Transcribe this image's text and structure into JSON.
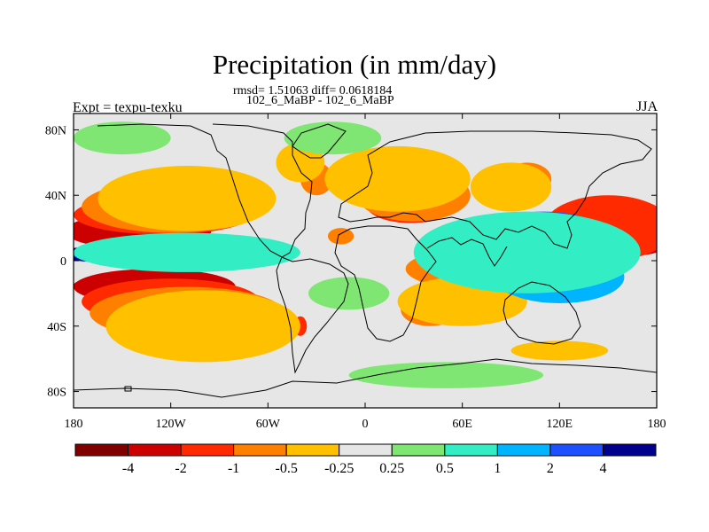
{
  "chart_data": {
    "type": "heatmap",
    "title": "Precipitation (in mm/day)",
    "subtitle_stats": "rmsd= 1.51063 diff= 0.0618184",
    "subtitle_runs": "102_6_MaBP - 102_6_MaBP",
    "left_label": "Expt = texpu-texku",
    "right_label": "JJA",
    "x_axis": {
      "range": [
        -180,
        180
      ],
      "ticks": [
        {
          "value": -180,
          "label": "180"
        },
        {
          "value": -120,
          "label": "120W"
        },
        {
          "value": -60,
          "label": "60W"
        },
        {
          "value": 0,
          "label": "0"
        },
        {
          "value": 60,
          "label": "60E"
        },
        {
          "value": 120,
          "label": "120E"
        },
        {
          "value": 180,
          "label": "180"
        }
      ]
    },
    "y_axis": {
      "range": [
        -90,
        90
      ],
      "ticks": [
        {
          "value": 80,
          "label": "80N"
        },
        {
          "value": 40,
          "label": "40N"
        },
        {
          "value": 0,
          "label": "0"
        },
        {
          "value": -40,
          "label": "40S"
        },
        {
          "value": -80,
          "label": "80S"
        }
      ]
    },
    "colorbar": {
      "colors": [
        "#800000",
        "#cc0000",
        "#ff2a00",
        "#ff7f00",
        "#ffc000",
        "#e6e6e6",
        "#80e673",
        "#33eec4",
        "#00b4ff",
        "#1e50ff",
        "#00008c"
      ],
      "labels": [
        "-4",
        "-2",
        "-1",
        "-0.5",
        "-0.25",
        "0.25",
        "0.5",
        "1",
        "2",
        "4"
      ]
    },
    "regions": [
      {
        "lon": -140,
        "lat": 15,
        "rx": 40,
        "ry": 6,
        "level": 0
      },
      {
        "lon": -145,
        "lat": -15,
        "rx": 35,
        "ry": 6,
        "level": 0
      },
      {
        "lon": -140,
        "lat": 18,
        "rx": 45,
        "ry": 11,
        "level": 1
      },
      {
        "lon": -130,
        "lat": -16,
        "rx": 50,
        "ry": 11,
        "level": 1
      },
      {
        "lon": 30,
        "lat": 33,
        "rx": 15,
        "ry": 7,
        "level": 1
      },
      {
        "lon": 55,
        "lat": -4,
        "rx": 15,
        "ry": 8,
        "level": 1
      },
      {
        "lon": -125,
        "lat": 28,
        "rx": 55,
        "ry": 12,
        "level": 2
      },
      {
        "lon": -120,
        "lat": -25,
        "rx": 55,
        "ry": 14,
        "level": 2
      },
      {
        "lon": -40,
        "lat": -40,
        "rx": 4,
        "ry": 6,
        "level": 2
      },
      {
        "lon": 28,
        "lat": 35,
        "rx": 28,
        "ry": 12,
        "level": 2
      },
      {
        "lon": 70,
        "lat": -3,
        "rx": 40,
        "ry": 10,
        "level": 2
      },
      {
        "lon": 172,
        "lat": 15,
        "rx": 22,
        "ry": 8,
        "level": 0
      },
      {
        "lon": 165,
        "lat": 18,
        "rx": 30,
        "ry": 15,
        "level": 1
      },
      {
        "lon": -120,
        "lat": 33,
        "rx": 55,
        "ry": 16,
        "level": 3
      },
      {
        "lon": -110,
        "lat": -32,
        "rx": 60,
        "ry": 16,
        "level": 3
      },
      {
        "lon": -15,
        "lat": 15,
        "rx": 8,
        "ry": 5,
        "level": 3
      },
      {
        "lon": -30,
        "lat": 50,
        "rx": 10,
        "ry": 10,
        "level": 3
      },
      {
        "lon": 30,
        "lat": 40,
        "rx": 35,
        "ry": 16,
        "level": 3
      },
      {
        "lon": 80,
        "lat": -5,
        "rx": 55,
        "ry": 14,
        "level": 3
      },
      {
        "lon": 40,
        "lat": -30,
        "rx": 18,
        "ry": 10,
        "level": 3
      },
      {
        "lon": 100,
        "lat": 50,
        "rx": 15,
        "ry": 10,
        "level": 3
      },
      {
        "lon": 150,
        "lat": 20,
        "rx": 40,
        "ry": 20,
        "level": 2
      },
      {
        "lon": -110,
        "lat": 38,
        "rx": 55,
        "ry": 20,
        "level": 4
      },
      {
        "lon": -100,
        "lat": -40,
        "rx": 60,
        "ry": 22,
        "level": 4
      },
      {
        "lon": -40,
        "lat": 60,
        "rx": 15,
        "ry": 12,
        "level": 4
      },
      {
        "lon": 20,
        "lat": 50,
        "rx": 45,
        "ry": 20,
        "level": 4
      },
      {
        "lon": 90,
        "lat": 45,
        "rx": 25,
        "ry": 15,
        "level": 4
      },
      {
        "lon": 60,
        "lat": -25,
        "rx": 40,
        "ry": 15,
        "level": 4
      },
      {
        "lon": 120,
        "lat": -55,
        "rx": 30,
        "ry": 6,
        "level": 4
      },
      {
        "lon": -160,
        "lat": 4,
        "rx": 30,
        "ry": 5,
        "level": 10
      },
      {
        "lon": -130,
        "lat": 4,
        "rx": 50,
        "ry": 8,
        "level": 8
      },
      {
        "lon": -110,
        "lat": 5,
        "rx": 70,
        "ry": 12,
        "level": 7
      },
      {
        "lon": 130,
        "lat": -15,
        "rx": 25,
        "ry": 8,
        "level": 10
      },
      {
        "lon": 95,
        "lat": 14,
        "rx": 25,
        "ry": 4,
        "level": 10
      },
      {
        "lon": 120,
        "lat": 18,
        "rx": 18,
        "ry": 8,
        "level": 10
      },
      {
        "lon": 110,
        "lat": 10,
        "rx": 45,
        "ry": 20,
        "level": 9
      },
      {
        "lon": 120,
        "lat": -10,
        "rx": 40,
        "ry": 16,
        "level": 8
      },
      {
        "lon": 100,
        "lat": 5,
        "rx": 70,
        "ry": 25,
        "level": 7
      },
      {
        "lon": -150,
        "lat": 75,
        "rx": 30,
        "ry": 10,
        "level": 6
      },
      {
        "lon": -20,
        "lat": 75,
        "rx": 30,
        "ry": 10,
        "level": 6
      },
      {
        "lon": -10,
        "lat": -20,
        "rx": 25,
        "ry": 10,
        "level": 6
      },
      {
        "lon": 50,
        "lat": -70,
        "rx": 60,
        "ry": 8,
        "level": 6
      }
    ]
  }
}
